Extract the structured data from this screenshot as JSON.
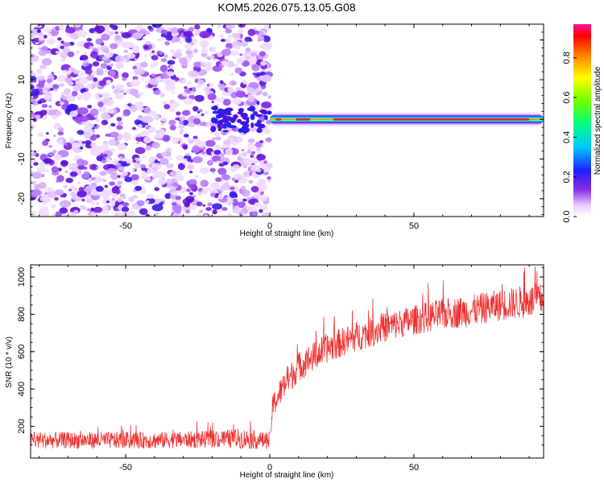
{
  "title": "KOM5.2026.075.13.05.G08",
  "chart_data": [
    {
      "type": "heatmap",
      "xlabel": "Height of straight line (km)",
      "ylabel": "Frequency (Hz)",
      "xlim": [
        -83,
        95
      ],
      "ylim": [
        -24.5,
        24
      ],
      "xticks": [
        -50,
        0,
        50
      ],
      "yticks": [
        -20,
        -10,
        0,
        10,
        20
      ],
      "description_regions": {
        "noise_region_x": [
          -83,
          0
        ],
        "tone_start_x": 0,
        "tone_frequency_hz": 0
      },
      "colorbar": {
        "label": "Normalized spectral amplitude",
        "range": [
          0,
          0.97
        ],
        "ticks": [
          0.0,
          0.2,
          0.4,
          0.6,
          0.8
        ],
        "tick_labels": [
          "0.0",
          "0.2",
          "0.4",
          "0.6",
          "0.8"
        ]
      }
    },
    {
      "type": "line",
      "color": "#ee3333",
      "xlabel": "Height of straight line (km)",
      "ylabel": "SNR (10 * v/v)",
      "xlim": [
        -83,
        95
      ],
      "ylim": [
        30,
        1065
      ],
      "xticks": [
        -50,
        0,
        50
      ],
      "yticks": [
        200,
        400,
        600,
        800,
        1000
      ],
      "trend": {
        "x": [
          -83,
          -60,
          -40,
          -20,
          -10,
          0,
          1,
          5,
          10,
          20,
          30,
          40,
          50,
          60,
          70,
          80,
          90,
          95
        ],
        "mean": [
          125,
          125,
          125,
          130,
          135,
          120,
          310,
          420,
          520,
          620,
          680,
          730,
          770,
          800,
          820,
          850,
          870,
          880
        ],
        "noise_amplitude": [
          45,
          45,
          45,
          45,
          55,
          45,
          70,
          75,
          80,
          80,
          80,
          80,
          80,
          85,
          85,
          85,
          90,
          90
        ]
      }
    }
  ]
}
